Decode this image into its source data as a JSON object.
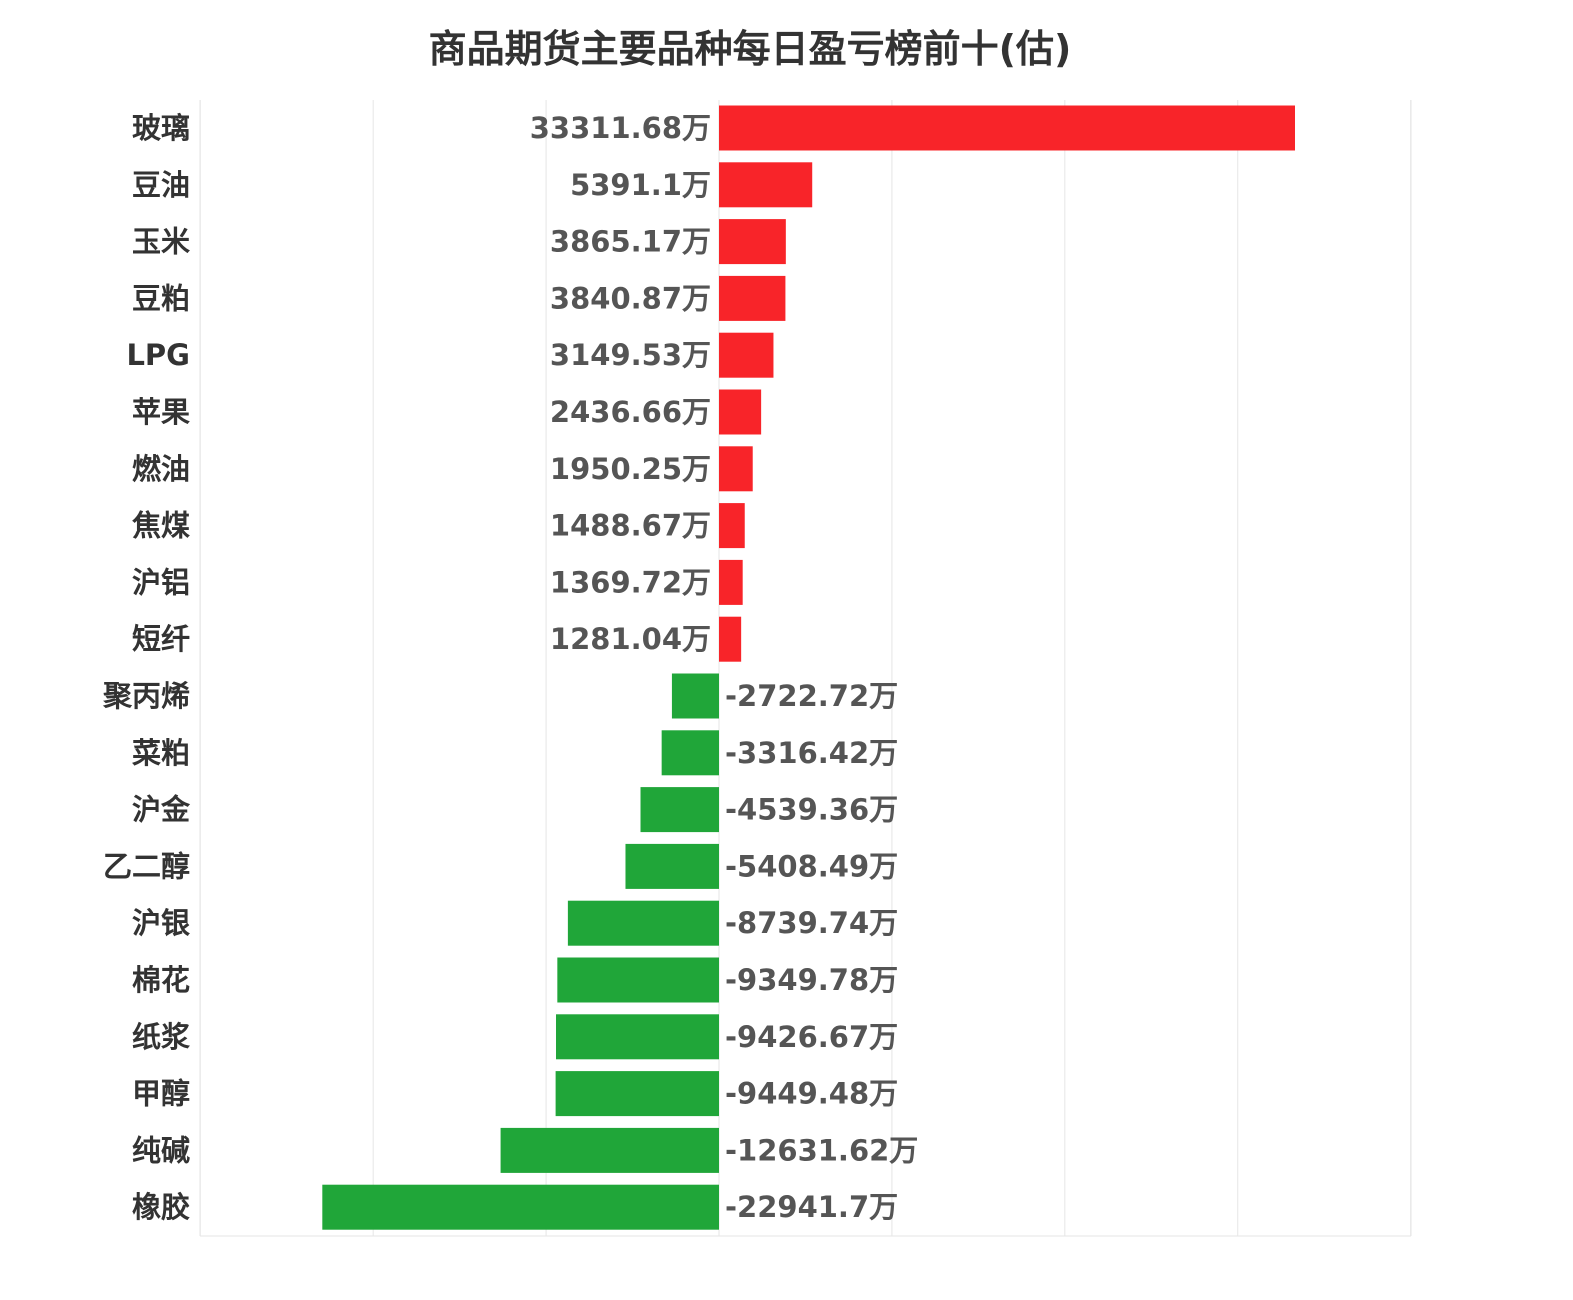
{
  "chart_data": {
    "type": "bar",
    "orientation": "horizontal",
    "title": "商品期货主要品种每日盈亏榜前十(估)",
    "xlabel": "",
    "ylabel": "",
    "unit": "万",
    "xlim": [
      -30000,
      40000
    ],
    "grid": true,
    "legend": "none",
    "colors": {
      "positive": "#f82429",
      "negative": "#20a639"
    },
    "categories": [
      "玻璃",
      "豆油",
      "玉米",
      "豆粕",
      "LPG",
      "苹果",
      "燃油",
      "焦煤",
      "沪铝",
      "短纤",
      "聚丙烯",
      "菜粕",
      "沪金",
      "乙二醇",
      "沪银",
      "棉花",
      "纸浆",
      "甲醇",
      "纯碱",
      "橡胶"
    ],
    "values": [
      33311.68,
      5391.1,
      3865.17,
      3840.87,
      3149.53,
      2436.66,
      1950.25,
      1488.67,
      1369.72,
      1281.04,
      -2722.72,
      -3316.42,
      -4539.36,
      -5408.49,
      -8739.74,
      -9349.78,
      -9426.67,
      -9449.48,
      -12631.62,
      -22941.7
    ],
    "value_labels": [
      "33311.68万",
      "5391.1万",
      "3865.17万",
      "3840.87万",
      "3149.53万",
      "2436.66万",
      "1950.25万",
      "1488.67万",
      "1369.72万",
      "1281.04万",
      "-2722.72万",
      "-3316.42万",
      "-4539.36万",
      "-5408.49万",
      "-8739.74万",
      "-9349.78万",
      "-9426.67万",
      "-9449.48万",
      "-12631.62万",
      "-22941.7万"
    ]
  }
}
